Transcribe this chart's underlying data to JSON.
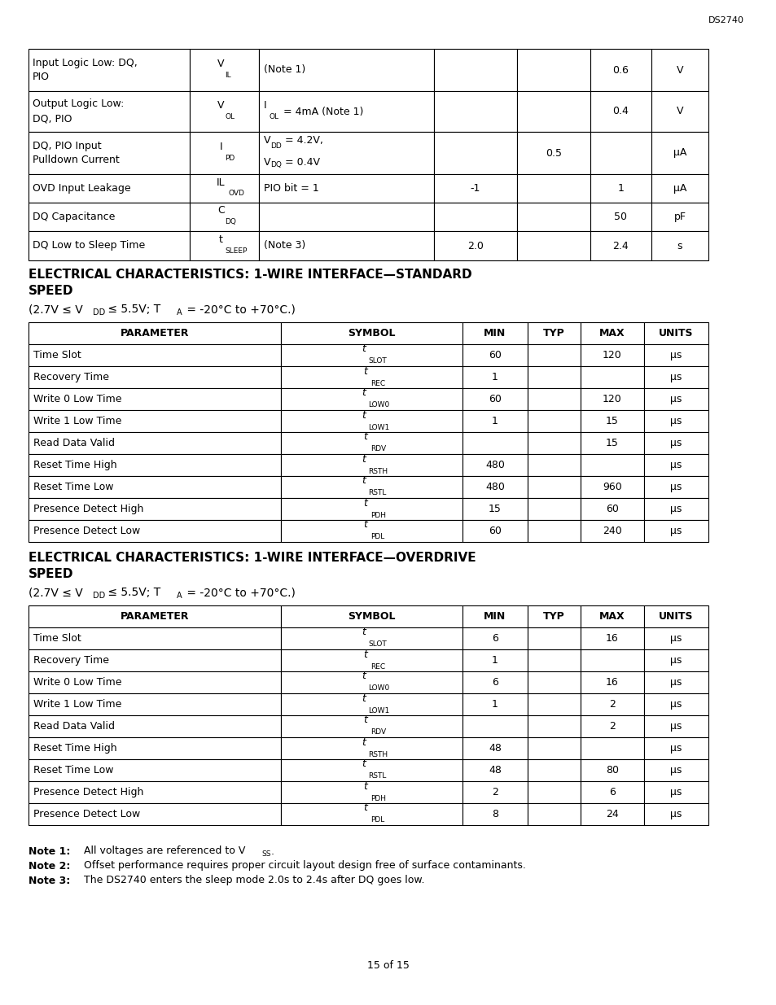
{
  "page_label": "DS2740",
  "background_color": "#ffffff",
  "text_color": "#000000",
  "top_table": {
    "rows": [
      {
        "param": "Input Logic Low: DQ,\nPIO",
        "symbol_main": "V",
        "symbol_sub": "IL",
        "condition": "(Note 1)",
        "min": "",
        "typ": "",
        "max": "0.6",
        "units": "V"
      },
      {
        "param": "Output Logic Low:\nDQ, PIO",
        "symbol_main": "V",
        "symbol_sub": "OL",
        "condition": "IOL = 4mA (Note 1)",
        "condition_has_sub": true,
        "min": "",
        "typ": "",
        "max": "0.4",
        "units": "V"
      },
      {
        "param": "DQ, PIO Input\nPulldown Current",
        "symbol_main": "I",
        "symbol_sub": "PD",
        "condition_line1": "VDD = 4.2V,",
        "condition_line2": "VDQ = 0.4V",
        "min": "",
        "typ": "0.5",
        "max": "",
        "units": "μA"
      },
      {
        "param": "OVD Input Leakage",
        "symbol_main": "IL",
        "symbol_sub": "OVD",
        "condition": "PIO bit = 1",
        "min": "-1",
        "typ": "",
        "max": "1",
        "units": "μA"
      },
      {
        "param": "DQ Capacitance",
        "symbol_main": "C",
        "symbol_sub": "DQ",
        "condition": "",
        "min": "",
        "typ": "",
        "max": "50",
        "units": "pF"
      },
      {
        "param": "DQ Low to Sleep Time",
        "symbol_main": "t",
        "symbol_sub": "SLEEP",
        "condition": "(Note 3)",
        "min": "2.0",
        "typ": "",
        "max": "2.4",
        "units": "s"
      }
    ]
  },
  "section1_table": {
    "header": [
      "PARAMETER",
      "SYMBOL",
      "MIN",
      "TYP",
      "MAX",
      "UNITS"
    ],
    "rows": [
      [
        "Time Slot",
        "t",
        "SLOT",
        "60",
        "",
        "120",
        "μs"
      ],
      [
        "Recovery Time",
        "t",
        "REC",
        "1",
        "",
        "",
        "μs"
      ],
      [
        "Write 0 Low Time",
        "t",
        "LOW0",
        "60",
        "",
        "120",
        "μs"
      ],
      [
        "Write 1 Low Time",
        "t",
        "LOW1",
        "1",
        "",
        "15",
        "μs"
      ],
      [
        "Read Data Valid",
        "t",
        "RDV",
        "",
        "",
        "15",
        "μs"
      ],
      [
        "Reset Time High",
        "t",
        "RSTH",
        "480",
        "",
        "",
        "μs"
      ],
      [
        "Reset Time Low",
        "t",
        "RSTL",
        "480",
        "",
        "960",
        "μs"
      ],
      [
        "Presence Detect High",
        "t",
        "PDH",
        "15",
        "",
        "60",
        "μs"
      ],
      [
        "Presence Detect Low",
        "t",
        "PDL",
        "60",
        "",
        "240",
        "μs"
      ]
    ]
  },
  "section2_table": {
    "header": [
      "PARAMETER",
      "SYMBOL",
      "MIN",
      "TYP",
      "MAX",
      "UNITS"
    ],
    "rows": [
      [
        "Time Slot",
        "t",
        "SLOT",
        "6",
        "",
        "16",
        "μs"
      ],
      [
        "Recovery Time",
        "t",
        "REC",
        "1",
        "",
        "",
        "μs"
      ],
      [
        "Write 0 Low Time",
        "t",
        "LOW0",
        "6",
        "",
        "16",
        "μs"
      ],
      [
        "Write 1 Low Time",
        "t",
        "LOW1",
        "1",
        "",
        "2",
        "μs"
      ],
      [
        "Read Data Valid",
        "t",
        "RDV",
        "",
        "",
        "2",
        "μs"
      ],
      [
        "Reset Time High",
        "t",
        "RSTH",
        "48",
        "",
        "",
        "μs"
      ],
      [
        "Reset Time Low",
        "t",
        "RSTL",
        "48",
        "",
        "80",
        "μs"
      ],
      [
        "Presence Detect High",
        "t",
        "PDH",
        "2",
        "",
        "6",
        "μs"
      ],
      [
        "Presence Detect Low",
        "t",
        "PDL",
        "8",
        "",
        "24",
        "μs"
      ]
    ]
  },
  "footer": "15 of 15"
}
